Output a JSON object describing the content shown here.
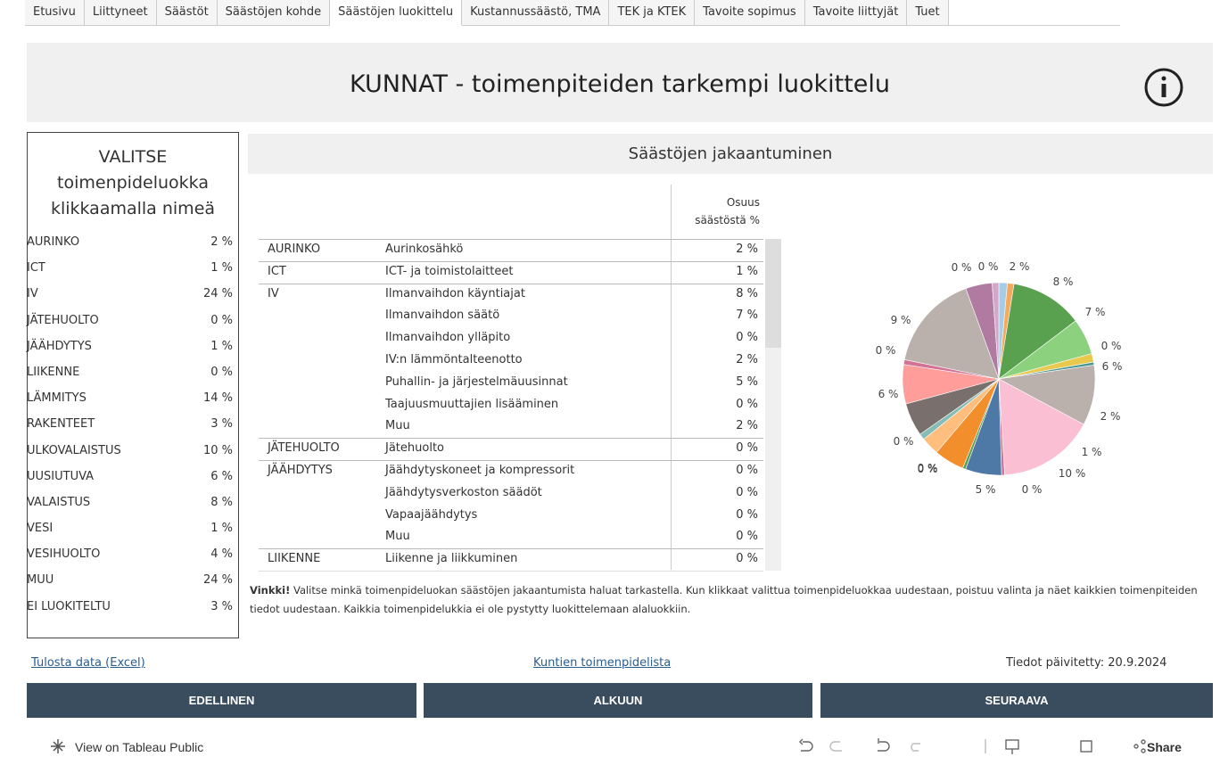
{
  "tabs": [
    "Etusivu",
    "Liittyneet",
    "Säästöt",
    "Säästöjen kohde",
    "Säästöjen luokittelu",
    "Kustannussäästö, TMA",
    "TEK ja KTEK",
    "Tavoite sopimus",
    "Tavoite liittyjät",
    "Tuet"
  ],
  "active_tab": 4,
  "header": {
    "title": "KUNNAT - toimenpiteiden tarkempi luokittelu"
  },
  "selector": {
    "title": [
      "VALITSE",
      "toimenpideluokka",
      "klikkaamalla nimeä"
    ],
    "rows": [
      [
        "AURINKO",
        "2 %"
      ],
      [
        "ICT",
        "1 %"
      ],
      [
        "IV",
        "24 %"
      ],
      [
        "JÄTEHUOLTO",
        "0 %"
      ],
      [
        "JÄÄHDYTYS",
        "1 %"
      ],
      [
        "LIIKENNE",
        "0 %"
      ],
      [
        "LÄMMITYS",
        "14 %"
      ],
      [
        "RAKENTEET",
        "3 %"
      ],
      [
        "ULKOVALAISTUS",
        "10 %"
      ],
      [
        "UUSIUTUVA",
        "6 %"
      ],
      [
        "VALAISTUS",
        "8 %"
      ],
      [
        "VESI",
        "1 %"
      ],
      [
        "VESIHUOLTO",
        "4 %"
      ],
      [
        "MUU",
        "24 %"
      ],
      [
        "EI LUOKITELTU",
        "3 %"
      ]
    ]
  },
  "section_title": "Säästöjen jakaantuminen",
  "table": {
    "header": [
      "Osuus",
      "säästöstä %"
    ],
    "groups": [
      {
        "category": "AURINKO",
        "items": [
          [
            "Aurinkosähkö",
            "2 %"
          ]
        ]
      },
      {
        "category": "ICT",
        "items": [
          [
            "ICT- ja toimistolaitteet",
            "1 %"
          ]
        ]
      },
      {
        "category": "IV",
        "items": [
          [
            "Ilmanvaihdon käyntiajat",
            "8 %"
          ],
          [
            "Ilmanvaihdon säätö",
            "7 %"
          ],
          [
            "Ilmanvaihdon ylläpito",
            "0 %"
          ],
          [
            "IV:n lämmöntalteenotto",
            "2 %"
          ],
          [
            "Puhallin- ja järjestelmäuusinnat",
            "5 %"
          ],
          [
            "Taajuusmuuttajien lisääminen",
            "0 %"
          ],
          [
            "Muu",
            "2 %"
          ]
        ]
      },
      {
        "category": "JÄTEHUOLTO",
        "items": [
          [
            "Jätehuolto",
            "0 %"
          ]
        ]
      },
      {
        "category": "JÄÄHDYTYS",
        "items": [
          [
            "Jäähdytyskoneet ja kompressorit",
            "0 %"
          ],
          [
            "Jäähdytysverkoston säädöt",
            "0 %"
          ],
          [
            "Vapaajäähdytys",
            "0 %"
          ],
          [
            "Muu",
            "0 %"
          ]
        ]
      },
      {
        "category": "LIIKENNE",
        "items": [
          [
            "Liikenne ja liikkuminen",
            "0 %"
          ]
        ]
      }
    ]
  },
  "chart_data": {
    "type": "pie",
    "slices": [
      {
        "value": 1.4,
        "color": "#a8cbe8"
      },
      {
        "value": 1.1,
        "color": "#f4a95c"
      },
      {
        "value": 12,
        "color": "#59a14f"
      },
      {
        "value": 6,
        "color": "#8cd17d"
      },
      {
        "value": 1.4,
        "color": "#e9c84e"
      },
      {
        "value": 0.5,
        "color": "#499894"
      },
      {
        "value": 10,
        "color": "#bab0ac"
      },
      {
        "value": 16,
        "color": "#fabfd2"
      },
      {
        "value": 0.5,
        "color": "#d37295"
      },
      {
        "value": 6,
        "color": "#4e79a7"
      },
      {
        "value": 0.5,
        "color": "#59a14f"
      },
      {
        "value": 5,
        "color": "#f28e2b"
      },
      {
        "value": 3,
        "color": "#ffbe7d"
      },
      {
        "value": 1,
        "color": "#86bcb6"
      },
      {
        "value": 5.5,
        "color": "#79706e"
      },
      {
        "value": 6.5,
        "color": "#ff9d9a"
      },
      {
        "value": 0.8,
        "color": "#d37295"
      },
      {
        "value": 16,
        "color": "#bab0ac"
      },
      {
        "value": 4.4,
        "color": "#b07aa1"
      },
      {
        "value": 1.1,
        "color": "#d4a6c8"
      }
    ],
    "annotations": [
      "0 %",
      "0 %",
      "2 %",
      "8 %",
      "7 %",
      "0 %",
      "6 %",
      "2 %",
      "1 %",
      "10 %",
      "0 %",
      "5 %",
      "0 %",
      "0 %",
      "6 %",
      "0 %",
      "9 %",
      "0 %"
    ]
  },
  "tip": {
    "bold": "Vinkki!",
    "text": " Valitse minkä toimenpideluokan säästöjen jakaantumista haluat tarkastella. Kun klikkaat valittua toimenpideluokkaa uudestaan, poistuu valinta ja näet kaikkien toimenpiteiden tiedot uudestaan. Kaikkia toimenpidelukkia ei ole pystytty luokittelemaan alaluokkiin."
  },
  "links": [
    "Tulosta data (Excel)",
    "Kuntien toimenpidelista"
  ],
  "updated": "Tiedot päivitetty: 20.9.2024",
  "buttons": [
    "EDELLINEN",
    "ALKUUN",
    "SEURAAVA"
  ],
  "toolbar": {
    "view": "View on Tableau Public",
    "share": "Share"
  }
}
